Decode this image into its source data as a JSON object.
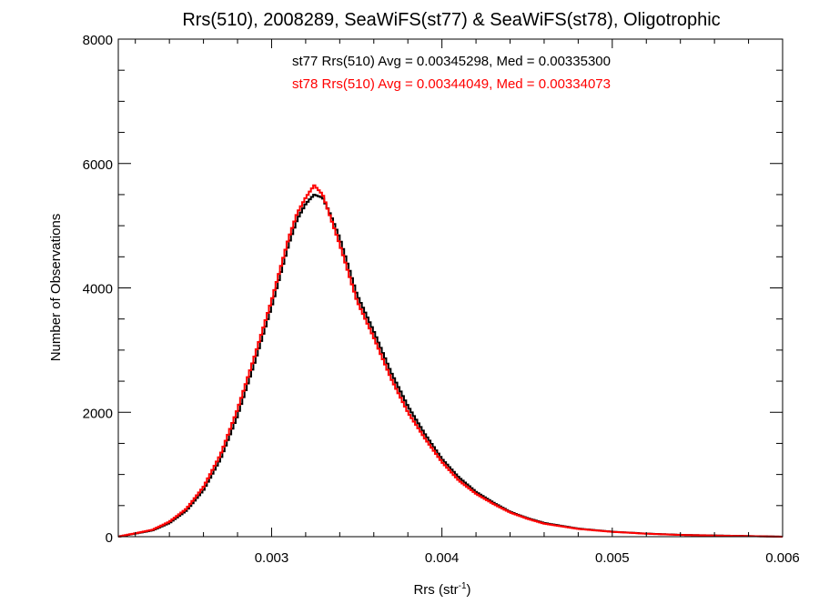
{
  "chart_data": {
    "type": "line",
    "style": "step-histogram",
    "title": "Rrs(510), 2008289, SeaWiFS(st77) & SeaWiFS(st78), Oligotrophic",
    "xlabel": "Rrs (str",
    "xlabel_sup": "-1",
    "xlabel_close": ")",
    "ylabel": "Number of Observations",
    "xlim": [
      0.0021,
      0.006
    ],
    "ylim": [
      0,
      8000
    ],
    "x_ticks": [
      0.003,
      0.004,
      0.005,
      0.006
    ],
    "x_tick_labels": [
      "0.003",
      "0.004",
      "0.005",
      "0.006"
    ],
    "y_ticks": [
      0,
      2000,
      4000,
      6000,
      8000
    ],
    "y_tick_labels": [
      "0",
      "2000",
      "4000",
      "6000",
      "8000"
    ],
    "grid": false,
    "annotations": [
      {
        "text": "st77 Rrs(510) Avg = 0.00345298, Med = 0.00335300",
        "color": "#000000"
      },
      {
        "text": "st78 Rrs(510) Avg = 0.00344049, Med = 0.00334073",
        "color": "#ff0000"
      }
    ],
    "series": [
      {
        "name": "st77",
        "color": "#000000",
        "x": [
          0.0021,
          0.0022,
          0.0023,
          0.0024,
          0.0025,
          0.0026,
          0.0027,
          0.0028,
          0.0029,
          0.003,
          0.00305,
          0.0031,
          0.00315,
          0.0032,
          0.00325,
          0.0033,
          0.00335,
          0.0034,
          0.00345,
          0.0035,
          0.0036,
          0.0037,
          0.0038,
          0.0039,
          0.004,
          0.0041,
          0.0042,
          0.0043,
          0.0044,
          0.0045,
          0.0046,
          0.0048,
          0.005,
          0.0052,
          0.0054,
          0.0056,
          0.0058,
          0.006
        ],
        "y": [
          0,
          50,
          100,
          220,
          420,
          750,
          1250,
          1950,
          2800,
          3700,
          4200,
          4700,
          5100,
          5350,
          5500,
          5450,
          5150,
          4800,
          4350,
          3900,
          3300,
          2650,
          2100,
          1650,
          1250,
          950,
          720,
          550,
          400,
          300,
          220,
          130,
          80,
          50,
          30,
          20,
          10,
          0
        ]
      },
      {
        "name": "st78",
        "color": "#ff0000",
        "x": [
          0.0021,
          0.0022,
          0.0023,
          0.0024,
          0.0025,
          0.0026,
          0.0027,
          0.0028,
          0.0029,
          0.003,
          0.00305,
          0.0031,
          0.00315,
          0.0032,
          0.00325,
          0.0033,
          0.00335,
          0.0034,
          0.00345,
          0.0035,
          0.0036,
          0.0037,
          0.0038,
          0.0039,
          0.004,
          0.0041,
          0.0042,
          0.0043,
          0.0044,
          0.0045,
          0.0046,
          0.0048,
          0.005,
          0.0052,
          0.0054,
          0.0056,
          0.0058,
          0.006
        ],
        "y": [
          0,
          55,
          110,
          240,
          450,
          800,
          1320,
          2050,
          2900,
          3800,
          4300,
          4800,
          5200,
          5450,
          5650,
          5500,
          5100,
          4700,
          4250,
          3800,
          3200,
          2550,
          2000,
          1580,
          1200,
          900,
          690,
          530,
          390,
          290,
          210,
          125,
          78,
          48,
          28,
          18,
          9,
          0
        ]
      }
    ]
  }
}
